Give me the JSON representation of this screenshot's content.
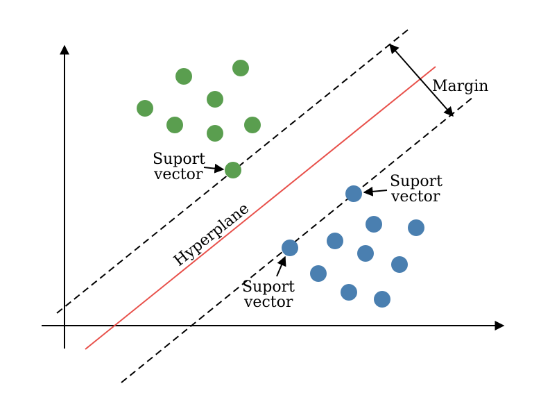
{
  "colors": {
    "class_a": "#5a9e4f",
    "class_b": "#4a7fb0",
    "hyperplane": "#e8504a",
    "margin_lines": "#000000",
    "axes": "#000000"
  },
  "labels": {
    "margin": "Margin",
    "hyperplane": "Hyperplane",
    "support_vector_line1": "Suport",
    "support_vector_line2": "vector"
  }
}
